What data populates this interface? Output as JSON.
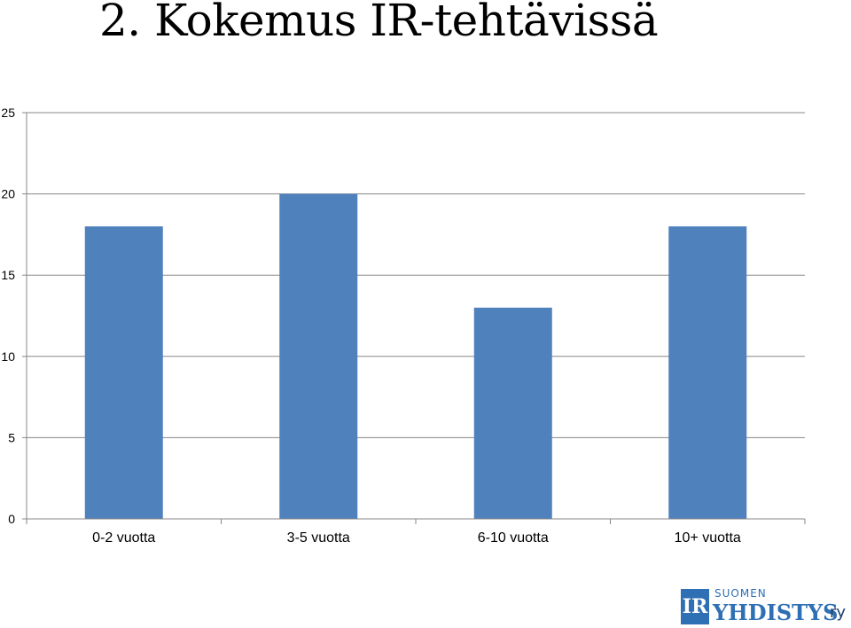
{
  "title": "2. Kokemus IR-tehtävissä",
  "chart_data": {
    "type": "bar",
    "categories": [
      "0-2 vuotta",
      "3-5 vuotta",
      "6-10 vuotta",
      "10+ vuotta"
    ],
    "values": [
      18,
      20,
      13,
      18
    ],
    "ylim": [
      0,
      25
    ],
    "yticks": [
      0,
      5,
      10,
      15,
      20,
      25
    ],
    "grid": true,
    "bar_color": "#4f81bd",
    "grid_color": "#878787"
  },
  "logo": {
    "mark": "IR",
    "top_text": "SUOMEN",
    "main_text": "YHDISTYS",
    "suffix": "ry",
    "color": "#2f6fb4"
  }
}
